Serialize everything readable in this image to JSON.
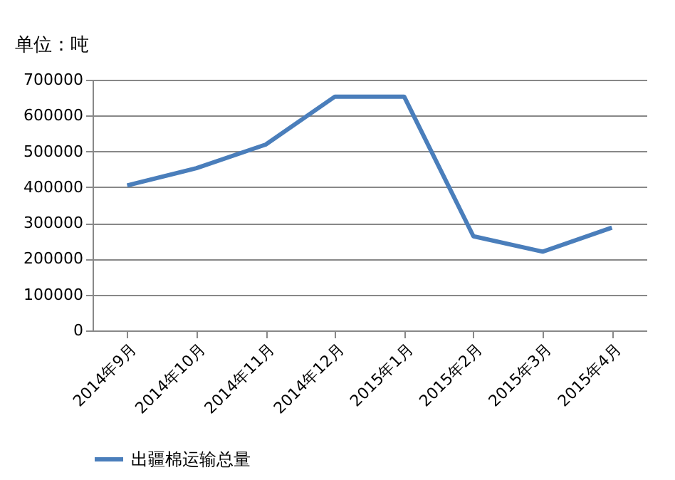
{
  "chart_data": {
    "type": "line",
    "ylabel": "单位：吨",
    "categories": [
      "2014年9月",
      "2014年10月",
      "2014年11月",
      "2014年12月",
      "2015年1月",
      "2015年2月",
      "2015年3月",
      "2015年4月"
    ],
    "series": [
      {
        "name": "出疆棉运输总量",
        "color": "#4a7ebb",
        "values": [
          405000,
          453000,
          519000,
          653000,
          653000,
          263000,
          220000,
          287000
        ]
      }
    ],
    "ylim": [
      0,
      700000
    ],
    "yticks": [
      0,
      100000,
      200000,
      300000,
      400000,
      500000,
      600000,
      700000
    ],
    "grid": "y",
    "legend": "bottom",
    "marker": "none",
    "line_style": "solid"
  }
}
